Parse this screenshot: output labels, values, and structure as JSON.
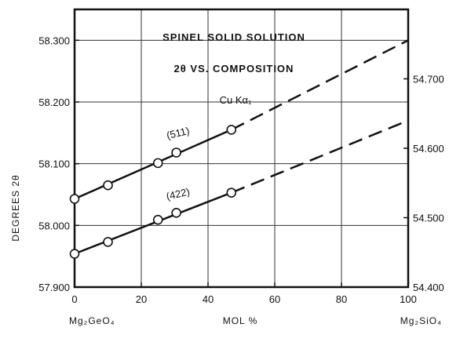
{
  "chart_data": {
    "type": "line",
    "title": "SPINEL SOLID SOLUTION",
    "subtitle": "2θ VS. COMPOSITION",
    "annotation": "Cu Kα₁",
    "xlabel": "MOL %",
    "xlabel_left_end": "Mg₂GeO₄",
    "xlabel_right_end": "Mg₂SiO₄",
    "ylabel_left": "DEGREES 2θ",
    "xlim": [
      0,
      100
    ],
    "ylim_left": [
      57.9,
      58.35
    ],
    "ylim_right": [
      54.4,
      54.8
    ],
    "x_ticks": [
      "0",
      "20",
      "40",
      "60",
      "80",
      "100"
    ],
    "y_ticks_left": [
      "57.900",
      "58.000",
      "58.100",
      "58.200",
      "58.300"
    ],
    "y_ticks_right": [
      "54.400",
      "54.500",
      "54.600",
      "54.700"
    ],
    "grid": true,
    "series": [
      {
        "name": "(511)",
        "axis": "left",
        "points": [
          {
            "x": 0,
            "y": 58.043
          },
          {
            "x": 10,
            "y": 58.065
          },
          {
            "x": 25,
            "y": 58.101
          },
          {
            "x": 30.5,
            "y": 58.118
          },
          {
            "x": 47,
            "y": 58.155
          }
        ],
        "solid_range": [
          0,
          47
        ],
        "dashed_range": [
          47,
          100
        ],
        "end_value": 58.3
      },
      {
        "name": "(422)",
        "axis": "right",
        "points": [
          {
            "x": 0,
            "y": 54.448
          },
          {
            "x": 10,
            "y": 54.465
          },
          {
            "x": 25,
            "y": 54.497
          },
          {
            "x": 30.5,
            "y": 54.507
          },
          {
            "x": 47,
            "y": 54.536
          }
        ],
        "solid_range": [
          0,
          47
        ],
        "dashed_range": [
          47,
          100
        ],
        "end_value": 54.64
      }
    ]
  }
}
